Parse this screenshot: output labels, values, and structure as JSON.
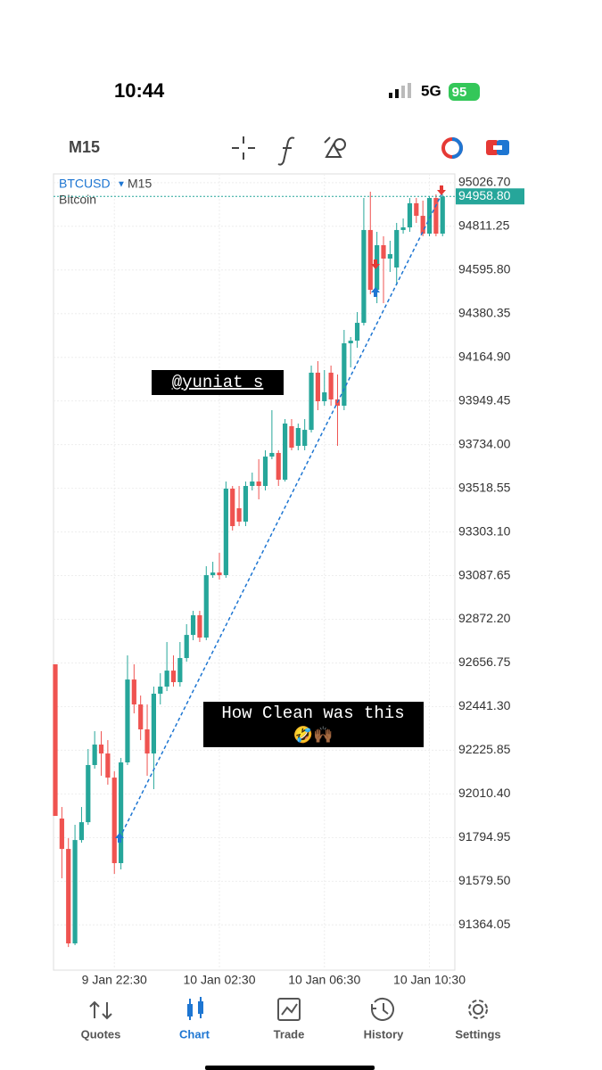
{
  "status_bar": {
    "time": "10:44",
    "network": "5G",
    "battery": "95"
  },
  "toolbar": {
    "timeframe": "M15"
  },
  "chart_data": {
    "type": "candlestick",
    "symbol": "BTCUSD",
    "timeframe": "M15",
    "description": "Bitcoin",
    "categories": [
      null,
      null,
      null,
      null,
      null,
      null,
      null,
      null,
      null,
      "9 Jan 22:30",
      null,
      null,
      null,
      null,
      null,
      null,
      null,
      null,
      null,
      null,
      null,
      null,
      null,
      null,
      null,
      "10 Jan 02:30",
      null,
      null,
      null,
      null,
      null,
      null,
      null,
      null,
      null,
      null,
      null,
      null,
      null,
      null,
      null,
      "10 Jan 06:30",
      null,
      null,
      null,
      null,
      null,
      null,
      null,
      null,
      null,
      null,
      null,
      null,
      null,
      null,
      null,
      "10 Jan 10:30",
      null,
      null
    ],
    "ohlc": [
      [
        92650,
        92650,
        91902,
        91902
      ],
      [
        91889,
        91946,
        91594,
        91739
      ],
      [
        91739,
        91792,
        91255,
        91273
      ],
      [
        91273,
        91858,
        91264,
        91783
      ],
      [
        91783,
        91946,
        91770,
        91871
      ],
      [
        91871,
        92232,
        91858,
        92153
      ],
      [
        92153,
        92320,
        92135,
        92254
      ],
      [
        92254,
        92320,
        92100,
        92210
      ],
      [
        92210,
        92276,
        92056,
        92091
      ],
      [
        92091,
        92122,
        91616,
        91669
      ],
      [
        91669,
        92188,
        91638,
        92166
      ],
      [
        92166,
        92694,
        92153,
        92575
      ],
      [
        92575,
        92650,
        92408,
        92452
      ],
      [
        92452,
        92496,
        92276,
        92329
      ],
      [
        92329,
        92452,
        92100,
        92210
      ],
      [
        92210,
        92540,
        92034,
        92505
      ],
      [
        92505,
        92606,
        92452,
        92540
      ],
      [
        92540,
        92760,
        92518,
        92619
      ],
      [
        92619,
        92694,
        92540,
        92562
      ],
      [
        92562,
        92760,
        92540,
        92681
      ],
      [
        92681,
        92848,
        92663,
        92795
      ],
      [
        92795,
        92914,
        92769,
        92892
      ],
      [
        92892,
        92914,
        92760,
        92782
      ],
      [
        92782,
        93134,
        92769,
        93090
      ],
      [
        93090,
        93156,
        93077,
        93103
      ],
      [
        93103,
        93200,
        93068,
        93090
      ],
      [
        93090,
        93552,
        93077,
        93517
      ],
      [
        93517,
        93530,
        93310,
        93332
      ],
      [
        93420,
        93530,
        93332,
        93354
      ],
      [
        93354,
        93552,
        93332,
        93530
      ],
      [
        93530,
        93596,
        93508,
        93552
      ],
      [
        93552,
        93662,
        93464,
        93530
      ],
      [
        93530,
        93706,
        93508,
        93675
      ],
      [
        93675,
        93904,
        93662,
        93693
      ],
      [
        93693,
        93706,
        93530,
        93561
      ],
      [
        93561,
        93860,
        93552,
        93838
      ],
      [
        93825,
        93860,
        93706,
        93719
      ],
      [
        93728,
        93838,
        93706,
        93816
      ],
      [
        93728,
        93860,
        93706,
        93807
      ],
      [
        93807,
        94124,
        93794,
        94089
      ],
      [
        94089,
        94146,
        93904,
        93948
      ],
      [
        93948,
        94102,
        93926,
        93992
      ],
      [
        94089,
        94124,
        93926,
        93957
      ],
      [
        93957,
        94080,
        93728,
        93926
      ],
      [
        93926,
        94300,
        93904,
        94234
      ],
      [
        94234,
        94265,
        94115,
        94247
      ],
      [
        94247,
        94388,
        94212,
        94335
      ],
      [
        94335,
        94951,
        94322,
        94793
      ],
      [
        94793,
        94982,
        94476,
        94498
      ],
      [
        94498,
        94784,
        94432,
        94718
      ],
      [
        94718,
        94762,
        94432,
        94652
      ],
      [
        94652,
        94740,
        94586,
        94674
      ],
      [
        94608,
        94828,
        94520,
        94793
      ],
      [
        94793,
        94850,
        94775,
        94806
      ],
      [
        94806,
        94951,
        94784,
        94925
      ],
      [
        94925,
        94951,
        94828,
        94863
      ],
      [
        94863,
        94938,
        94762,
        94775
      ],
      [
        94775,
        94960,
        94762,
        94951
      ],
      [
        94951,
        94969,
        94762,
        94775
      ],
      [
        94775,
        94969,
        94762,
        94958.8
      ]
    ],
    "up_color": "#26a69a",
    "down_color": "#ef5350",
    "current_price": {
      "value": 94958.8,
      "label": "94958.80"
    },
    "ylim": [
      91141,
      95070
    ],
    "yticks": [
      {
        "value": 95026.7,
        "label": "95026.70"
      },
      {
        "value": 94811.25,
        "label": "94811.25"
      },
      {
        "value": 94595.8,
        "label": "94595.80"
      },
      {
        "value": 94380.35,
        "label": "94380.35"
      },
      {
        "value": 94164.9,
        "label": "94164.90"
      },
      {
        "value": 93949.45,
        "label": "93949.45"
      },
      {
        "value": 93734,
        "label": "93734.00"
      },
      {
        "value": 93518.55,
        "label": "93518.55"
      },
      {
        "value": 93303.1,
        "label": "93303.10"
      },
      {
        "value": 93087.65,
        "label": "93087.65"
      },
      {
        "value": 92872.2,
        "label": "92872.20"
      },
      {
        "value": 92656.75,
        "label": "92656.75"
      },
      {
        "value": 92441.3,
        "label": "92441.30"
      },
      {
        "value": 92225.85,
        "label": "92225.85"
      },
      {
        "value": 92010.4,
        "label": "92010.40"
      },
      {
        "value": 91794.95,
        "label": "91794.95"
      },
      {
        "value": 91579.5,
        "label": "91579.50"
      },
      {
        "value": 91364.05,
        "label": "91364.05"
      }
    ],
    "grid": true,
    "annotations": [
      "@yuniat_s",
      "How Clean was this",
      "🤣🙌🏾"
    ]
  },
  "nav": {
    "items": [
      "Quotes",
      "Chart",
      "Trade",
      "History",
      "Settings"
    ]
  }
}
